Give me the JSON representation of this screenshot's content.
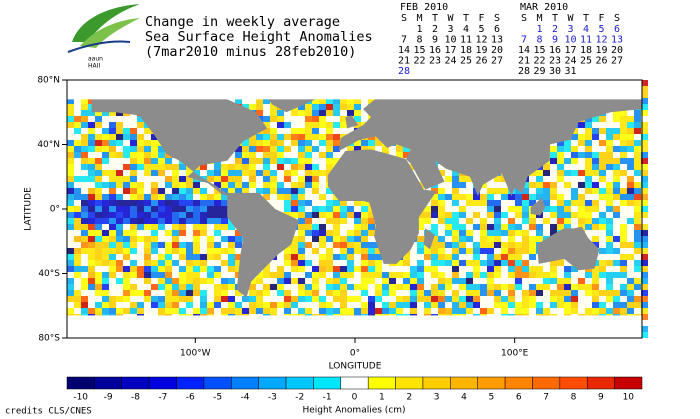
{
  "header": {
    "title_lines": [
      "Change in weekly average",
      "Sea Surface Height Anomalies",
      "(7mar2010 minus 28feb2010)"
    ],
    "logo_lines": [
      "aaun",
      "HAII"
    ]
  },
  "calendars": [
    {
      "title": "FEB 2010",
      "weekdays": [
        "S",
        "M",
        "T",
        "W",
        "T",
        "F",
        "S"
      ],
      "rows": [
        [
          null,
          1,
          2,
          3,
          4,
          5,
          6
        ],
        [
          7,
          8,
          9,
          10,
          11,
          12,
          13
        ],
        [
          14,
          15,
          16,
          17,
          18,
          19,
          20
        ],
        [
          21,
          22,
          23,
          24,
          25,
          26,
          27
        ],
        [
          28
        ]
      ],
      "highlight_rows": [
        4
      ],
      "highlight_color": "#1a1acc"
    },
    {
      "title": "MAR 2010",
      "weekdays": [
        "S",
        "M",
        "T",
        "W",
        "T",
        "F",
        "S"
      ],
      "rows": [
        [
          null,
          1,
          2,
          3,
          4,
          5,
          6
        ],
        [
          7,
          8,
          9,
          10,
          11,
          12,
          13
        ],
        [
          14,
          15,
          16,
          17,
          18,
          19,
          20
        ],
        [
          21,
          22,
          23,
          24,
          25,
          26,
          27
        ],
        [
          28,
          29,
          30,
          31
        ]
      ],
      "highlight_rows": [
        0,
        1
      ],
      "highlight_color": "#1a1acc"
    }
  ],
  "map": {
    "y_label": "LATITUDE",
    "x_label": "LONGITUDE",
    "y_ticks": [
      "80°N",
      "40°N",
      "0°",
      "40°S",
      "80°S"
    ],
    "x_ticks": [
      "100°W",
      "0°",
      "100°E"
    ]
  },
  "colorbar": {
    "title": "Height Anomalies (cm)",
    "labels": [
      -10,
      -9,
      -8,
      -7,
      -6,
      -5,
      -4,
      -3,
      -2,
      -1,
      0,
      1,
      2,
      3,
      4,
      5,
      6,
      7,
      8,
      9,
      10
    ],
    "colors": [
      "#000070",
      "#00009a",
      "#0000c0",
      "#0000e0",
      "#0022ff",
      "#0050ff",
      "#0080ff",
      "#00a8ff",
      "#00c8ff",
      "#00e6ff",
      "#ffffff",
      "#ffff00",
      "#ffe400",
      "#ffcc00",
      "#ffb400",
      "#ff9c00",
      "#ff8400",
      "#ff6a00",
      "#ff4c00",
      "#e82800",
      "#c80000"
    ]
  },
  "credits": "credits CLS/CNES"
}
